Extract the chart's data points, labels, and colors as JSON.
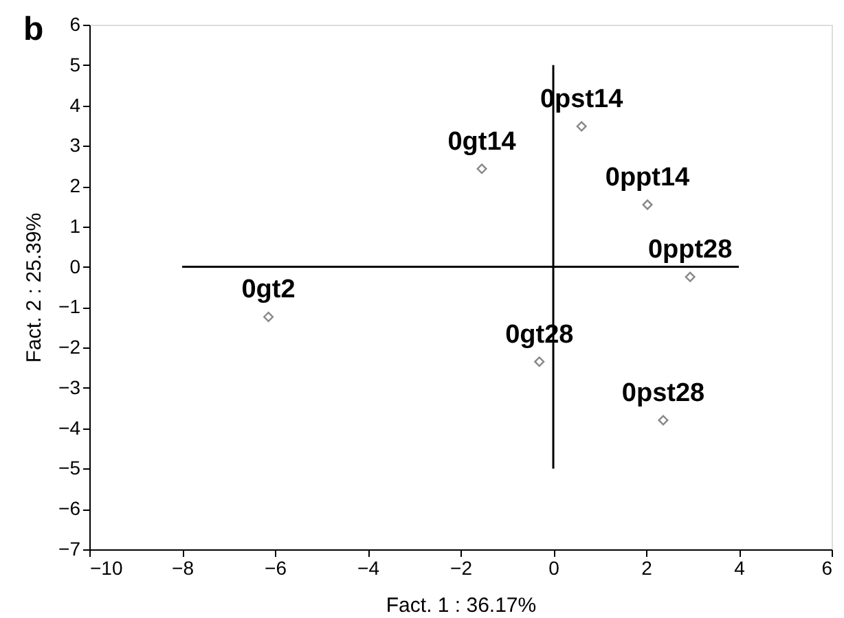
{
  "chart_data": {
    "type": "scatter",
    "xlabel": "Fact. 1 : 36.17%",
    "ylabel": "Fact. 2 : 25.39%",
    "xlim": [
      -10,
      6
    ],
    "xticks": [
      -10,
      -8,
      -6,
      -4,
      -2,
      0,
      2,
      4,
      6
    ],
    "ylim": [
      -7,
      6
    ],
    "yticks": [
      -7,
      -6,
      -5,
      -4,
      -3,
      -2,
      -1,
      0,
      1,
      2,
      3,
      4,
      5,
      6
    ],
    "grid": false,
    "marker": "diamond",
    "series": [
      {
        "color": "#555555",
        "x": [
          -6.14,
          -1.54,
          0.61,
          2.03,
          2.95,
          -0.3,
          2.37
        ],
        "values": [
          -1.24,
          2.43,
          3.48,
          1.54,
          -0.25,
          -2.35,
          -3.8
        ]
      },
      {
        "type": "line",
        "marker": "none",
        "color": "#000000",
        "x": [
          -8,
          4
        ],
        "values": [
          0,
          0
        ]
      },
      {
        "type": "line",
        "marker": "none",
        "color": "#000000",
        "x": [
          0,
          0
        ],
        "values": [
          -5,
          5
        ]
      }
    ],
    "annotations": [
      "b",
      {
        "text": "0gt2",
        "x": -6.14,
        "y": -1.24
      },
      {
        "text": "0gt14",
        "x": -1.54,
        "y": 2.43
      },
      {
        "text": "0pst14",
        "x": 0.61,
        "y": 3.48
      },
      {
        "text": "0ppt14",
        "x": 2.03,
        "y": 1.54
      },
      {
        "text": "0ppt28",
        "x": 2.95,
        "y": -0.25
      },
      {
        "text": "0gt28",
        "x": -0.3,
        "y": -2.35
      },
      {
        "text": "0pst28",
        "x": 2.37,
        "y": -3.8
      }
    ]
  }
}
